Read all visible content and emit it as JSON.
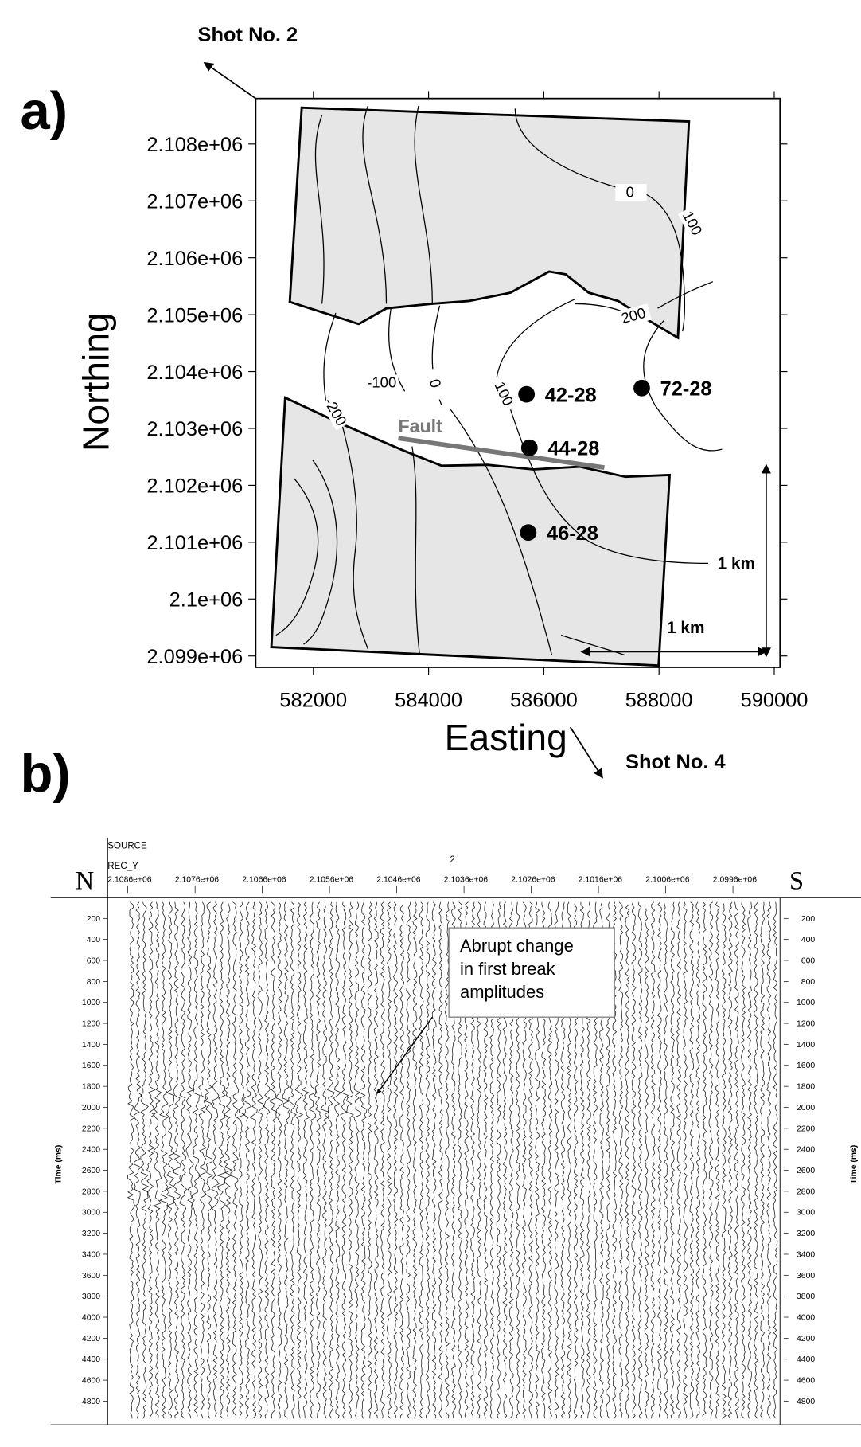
{
  "chart_data": [
    {
      "type": "map",
      "panel_label": "a)",
      "x_label": "Easting",
      "y_label": "Northing",
      "xlim": [
        581000,
        590100
      ],
      "xticks": [
        582000,
        584000,
        586000,
        588000,
        590000
      ],
      "ylim": [
        2098800,
        2108800
      ],
      "yticks": [
        {
          "value": 2099000,
          "label": "2.099e+06"
        },
        {
          "value": 2100000,
          "label": "2.1e+06"
        },
        {
          "value": 2101000,
          "label": "2.101e+06"
        },
        {
          "value": 2102000,
          "label": "2.102e+06"
        },
        {
          "value": 2103000,
          "label": "2.103e+06"
        },
        {
          "value": 2104000,
          "label": "2.104e+06"
        },
        {
          "value": 2105000,
          "label": "2.105e+06"
        },
        {
          "value": 2106000,
          "label": "2.106e+06"
        },
        {
          "value": 2107000,
          "label": "2.107e+06"
        },
        {
          "value": 2108000,
          "label": "2.108e+06"
        }
      ],
      "wells": {
        "labels": [
          "42-28",
          "44-28",
          "46-28",
          "72-28"
        ],
        "x": [
          585700,
          585750,
          585730,
          587700
        ],
        "values": [
          2103600,
          2102660,
          2101170,
          2103710
        ],
        "color": "#000000"
      },
      "contour_labels": [
        "0",
        "100",
        "200",
        "-100",
        "0",
        "100",
        "-200"
      ],
      "fault_label": "Fault",
      "scale_labels": [
        "1 km",
        "1 km"
      ],
      "shot_labels": [
        "Shot No. 2",
        "Shot No. 4"
      ]
    },
    {
      "type": "seismic",
      "panel_label": "b)",
      "header_labels": [
        "SOURCE",
        "REC_Y"
      ],
      "source_value": 2,
      "ends": [
        "N",
        "S"
      ],
      "y_label": "Time (ms)",
      "xlim": [
        2108900,
        2098900
      ],
      "xticks": [
        {
          "value": 2108600,
          "label": "2.1086e+06"
        },
        {
          "value": 2107600,
          "label": "2.1076e+06"
        },
        {
          "value": 2106600,
          "label": "2.1066e+06"
        },
        {
          "value": 2105600,
          "label": "2.1056e+06"
        },
        {
          "value": 2104600,
          "label": "2.1046e+06"
        },
        {
          "value": 2103600,
          "label": "2.1036e+06"
        },
        {
          "value": 2102600,
          "label": "2.1026e+06"
        },
        {
          "value": 2101600,
          "label": "2.1016e+06"
        },
        {
          "value": 2100600,
          "label": "2.1006e+06"
        },
        {
          "value": 2099600,
          "label": "2.0996e+06"
        }
      ],
      "ylim": [
        5000,
        0
      ],
      "yticks": [
        200,
        400,
        600,
        800,
        1000,
        1200,
        1400,
        1600,
        1800,
        2000,
        2200,
        2400,
        2600,
        2800,
        3000,
        3200,
        3400,
        3600,
        3800,
        4000,
        4200,
        4400,
        4600,
        4800
      ],
      "annotation": [
        "Abrupt change",
        "in first break",
        "amplitudes"
      ]
    }
  ]
}
